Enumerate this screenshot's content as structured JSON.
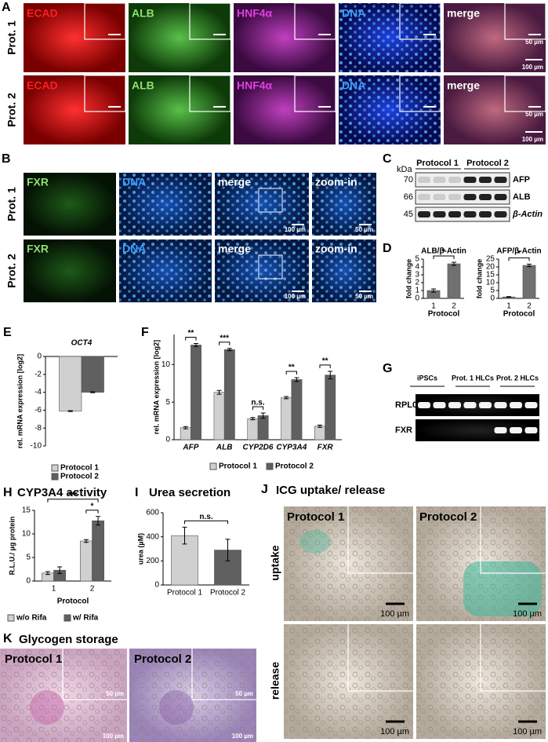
{
  "panels": {
    "A": {
      "letter": "A",
      "rows": [
        "Prot. 1",
        "Prot. 2"
      ],
      "columns": [
        "ECAD",
        "ALB",
        "HNF4α",
        "DNA",
        "merge"
      ],
      "scale_bars": [
        "50 µm",
        "100 µm",
        "50 µm",
        "100 µm"
      ]
    },
    "B": {
      "letter": "B",
      "rows": [
        "Prot. 1",
        "Prot. 2"
      ],
      "columns": [
        "FXR",
        "DNA",
        "merge",
        "zoom-in"
      ],
      "scale_bars": [
        "100 µm",
        "50 µm",
        "100 µm",
        "50 µm"
      ]
    },
    "C": {
      "letter": "C",
      "unit": "kDa",
      "groups": [
        "Protocol 1",
        "Protocol 2"
      ],
      "markers": [
        "70",
        "66",
        "45"
      ],
      "bands": [
        "AFP",
        "ALB",
        "β-Actin"
      ]
    },
    "D": {
      "letter": "D"
    },
    "E": {
      "letter": "E"
    },
    "F": {
      "letter": "F"
    },
    "G": {
      "letter": "G",
      "groups": [
        "iPSCs",
        "Prot. 1 HLCs",
        "Prot. 2 HLCs"
      ],
      "rows": [
        "RPL0",
        "FXR"
      ]
    },
    "H": {
      "letter": "H"
    },
    "I": {
      "letter": "I"
    },
    "J": {
      "letter": "J",
      "title": "ICG uptake/ release",
      "columns": [
        "Protocol 1",
        "Protocol 2"
      ],
      "rows": [
        "uptake",
        "release"
      ],
      "scale_bars": [
        "100 µm",
        "100 µm",
        "100 µm",
        "100 µm"
      ]
    },
    "K": {
      "letter": "K",
      "title": "Glycogen storage",
      "columns": [
        "Protocol 1",
        "Protocol 2"
      ],
      "scale_bars": [
        "50 µm",
        "100 µm",
        "50 µm",
        "100 µm"
      ]
    }
  },
  "chart_data": [
    {
      "type": "bar",
      "title": "ALB/β-Actin",
      "categories": [
        "1",
        "2"
      ],
      "values": [
        1.0,
        4.4
      ],
      "errors": [
        0.2,
        0.2
      ],
      "color": "#707070",
      "ylim": [
        0,
        5
      ],
      "yticks": [
        0,
        1,
        2,
        3,
        4,
        5
      ],
      "ylabel": "fold change",
      "xlabel": "Protocol",
      "annotations": [
        "*"
      ]
    },
    {
      "type": "bar",
      "title": "AFP/β-Actin",
      "categories": [
        "1",
        "2"
      ],
      "values": [
        0.9,
        21
      ],
      "errors": [
        0.2,
        0.8
      ],
      "color": "#707070",
      "ylim": [
        0,
        25
      ],
      "yticks": [
        0,
        5,
        10,
        15,
        20,
        25
      ],
      "ylabel": "fold change",
      "xlabel": "Protocol",
      "annotations": [
        "*"
      ]
    },
    {
      "type": "bar",
      "title": "OCT4",
      "series": [
        {
          "name": "Protocol 1",
          "color": "#d0d0d0",
          "values": [
            -6.1
          ],
          "errors": [
            0.05
          ]
        },
        {
          "name": "Protocol 2",
          "color": "#606060",
          "values": [
            -4.0
          ],
          "errors": [
            0.05
          ]
        }
      ],
      "ylim": [
        -10,
        0
      ],
      "yticks": [
        -10,
        -8,
        -6,
        -4,
        -2,
        0
      ],
      "ylabel": "rel. mRNA expression [log2]",
      "legend": "lower left"
    },
    {
      "type": "bar",
      "categories": [
        "AFP",
        "ALB",
        "CYP2D6",
        "CYP3A4",
        "FXR"
      ],
      "series": [
        {
          "name": "Protocol 1",
          "color": "#d0d0d0",
          "values": [
            1.6,
            6.3,
            2.8,
            5.6,
            1.8
          ],
          "errors": [
            0.15,
            0.25,
            0.15,
            0.15,
            0.15
          ]
        },
        {
          "name": "Protocol 2",
          "color": "#606060",
          "values": [
            12.6,
            12.0,
            3.2,
            8.0,
            8.6
          ],
          "errors": [
            0.2,
            0.15,
            0.35,
            0.25,
            0.5
          ]
        }
      ],
      "ylim": [
        0,
        14
      ],
      "yticks": [
        0,
        5,
        10
      ],
      "ylabel": "rel. mRNA expression [log2]",
      "legend": "bottom",
      "annotations": [
        "**",
        "***",
        "n.s.",
        "**",
        "**"
      ]
    },
    {
      "type": "bar",
      "title": "CYP3A4 activity",
      "categories": [
        "1",
        "2"
      ],
      "series": [
        {
          "name": "w/o Rifa",
          "color": "#d0d0d0",
          "values": [
            1.7,
            8.5
          ],
          "errors": [
            0.3,
            0.3
          ]
        },
        {
          "name": "w/ Rifa",
          "color": "#606060",
          "values": [
            2.3,
            12.8
          ],
          "errors": [
            0.7,
            0.9
          ]
        }
      ],
      "ylim": [
        0,
        15
      ],
      "yticks": [
        0,
        5,
        10,
        15
      ],
      "ylabel": "R.L.U./ µg protein",
      "xlabel": "Protocol",
      "legend": "bottom",
      "annotations": [
        "***",
        "*"
      ]
    },
    {
      "type": "bar",
      "title": "Urea secretion",
      "categories": [
        "Protocol 1",
        "Protocol 2"
      ],
      "values": [
        410,
        290
      ],
      "errors": [
        70,
        90
      ],
      "colors": [
        "#d0d0d0",
        "#606060"
      ],
      "ylim": [
        0,
        600
      ],
      "yticks": [
        0,
        200,
        400,
        600
      ],
      "ylabel": "urea (µM)",
      "annotations": [
        "n.s."
      ]
    }
  ]
}
